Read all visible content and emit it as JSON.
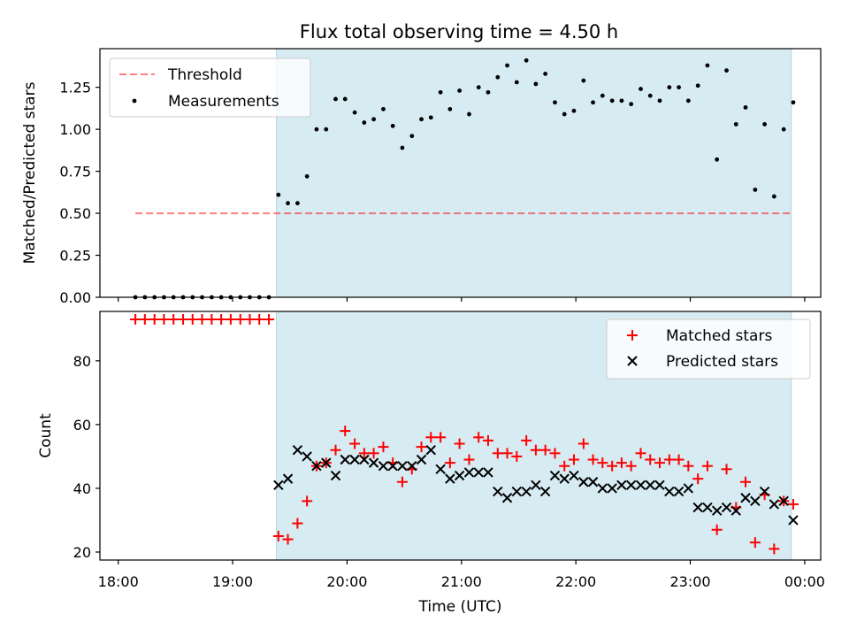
{
  "title": "Flux total observing time = 4.50 h",
  "colors": {
    "shade": "#add8e6",
    "threshold": "#ff0000",
    "measurement": "#000000",
    "matched": "#ff0000",
    "predicted": "#000000"
  },
  "chart_data": [
    {
      "type": "scatter",
      "ylabel": "Matched/Predicted stars",
      "ylim": [
        0,
        1.48
      ],
      "xlim_hours": [
        17.84,
        24.14
      ],
      "yticks": [
        0,
        0.25,
        0.5,
        0.75,
        1.0,
        1.25
      ],
      "ytick_labels": [
        "0.00",
        "0.25",
        "0.50",
        "0.75",
        "1.00",
        "1.25"
      ],
      "observing_window_hours": [
        19.383,
        23.883
      ],
      "legend": {
        "position": "upper-left",
        "entries": [
          {
            "name": "Threshold",
            "marker": "dashed-line"
          },
          {
            "name": "Measurements",
            "marker": "dot"
          }
        ]
      },
      "threshold": {
        "value": 0.5,
        "x_from": 18.15,
        "x_to": 23.883
      },
      "measurements": {
        "x": [
          18.15,
          18.233,
          18.317,
          18.4,
          18.483,
          18.567,
          18.65,
          18.733,
          18.817,
          18.9,
          18.983,
          19.067,
          19.15,
          19.233,
          19.317,
          19.4,
          19.483,
          19.567,
          19.65,
          19.733,
          19.817,
          19.9,
          19.983,
          20.067,
          20.15,
          20.233,
          20.317,
          20.4,
          20.483,
          20.567,
          20.65,
          20.733,
          20.817,
          20.9,
          20.983,
          21.067,
          21.15,
          21.233,
          21.317,
          21.4,
          21.483,
          21.567,
          21.65,
          21.733,
          21.817,
          21.9,
          21.983,
          22.067,
          22.15,
          22.233,
          22.317,
          22.4,
          22.483,
          22.567,
          22.65,
          22.733,
          22.817,
          22.9,
          22.983,
          23.067,
          23.15,
          23.233,
          23.317,
          23.4,
          23.483,
          23.567,
          23.65,
          23.733,
          23.817,
          23.9
        ],
        "y": [
          0,
          0,
          0,
          0,
          0,
          0,
          0,
          0,
          0,
          0,
          0,
          0,
          0,
          0,
          0,
          0.61,
          0.56,
          0.56,
          0.72,
          1.0,
          1.0,
          1.18,
          1.18,
          1.1,
          1.04,
          1.06,
          1.12,
          1.02,
          0.89,
          0.96,
          1.06,
          1.07,
          1.22,
          1.12,
          1.23,
          1.09,
          1.25,
          1.22,
          1.31,
          1.38,
          1.28,
          1.41,
          1.27,
          1.33,
          1.16,
          1.09,
          1.11,
          1.29,
          1.16,
          1.2,
          1.17,
          1.17,
          1.15,
          1.24,
          1.2,
          1.17,
          1.25,
          1.25,
          1.17,
          1.26,
          1.38,
          0.82,
          1.35,
          1.03,
          1.13,
          0.64,
          1.03,
          0.6,
          1.0,
          1.16
        ]
      }
    },
    {
      "type": "scatter",
      "ylabel": "Count",
      "xlabel": "Time (UTC)",
      "ylim": [
        17.5,
        95.5
      ],
      "xlim_hours": [
        17.84,
        24.14
      ],
      "yticks": [
        20,
        40,
        60,
        80
      ],
      "ytick_labels": [
        "20",
        "40",
        "60",
        "80"
      ],
      "xticks_hours": [
        18,
        19,
        20,
        21,
        22,
        23,
        24
      ],
      "xtick_labels": [
        "18:00",
        "19:00",
        "20:00",
        "21:00",
        "22:00",
        "23:00",
        "00:00"
      ],
      "observing_window_hours": [
        19.383,
        23.883
      ],
      "legend": {
        "position": "upper-right",
        "entries": [
          {
            "name": "Matched stars",
            "marker": "plus"
          },
          {
            "name": "Predicted stars",
            "marker": "x"
          }
        ]
      },
      "series": [
        {
          "name": "Matched stars",
          "x": [
            18.15,
            18.233,
            18.317,
            18.4,
            18.483,
            18.567,
            18.65,
            18.733,
            18.817,
            18.9,
            18.983,
            19.067,
            19.15,
            19.233,
            19.317,
            19.4,
            19.483,
            19.567,
            19.65,
            19.733,
            19.817,
            19.9,
            19.983,
            20.067,
            20.15,
            20.233,
            20.317,
            20.4,
            20.483,
            20.567,
            20.65,
            20.733,
            20.817,
            20.9,
            20.983,
            21.067,
            21.15,
            21.233,
            21.317,
            21.4,
            21.483,
            21.567,
            21.65,
            21.733,
            21.817,
            21.9,
            21.983,
            22.067,
            22.15,
            22.233,
            22.317,
            22.4,
            22.483,
            22.567,
            22.65,
            22.733,
            22.817,
            22.9,
            22.983,
            23.067,
            23.15,
            23.233,
            23.317,
            23.4,
            23.483,
            23.567,
            23.65,
            23.733,
            23.817,
            23.9
          ],
          "y": [
            93,
            93,
            93,
            93,
            93,
            93,
            93,
            93,
            93,
            93,
            93,
            93,
            93,
            93,
            93,
            25,
            24,
            29,
            36,
            47,
            48,
            52,
            58,
            54,
            51,
            51,
            53,
            48,
            42,
            46,
            53,
            56,
            56,
            48,
            54,
            49,
            56,
            55,
            51,
            51,
            50,
            55,
            52,
            52,
            51,
            47,
            49,
            54,
            49,
            48,
            47,
            48,
            47,
            51,
            49,
            48,
            49,
            49,
            47,
            43,
            47,
            27,
            46,
            34,
            42,
            23,
            38,
            21,
            36,
            35
          ]
        },
        {
          "name": "Predicted stars",
          "x": [
            19.4,
            19.483,
            19.567,
            19.65,
            19.733,
            19.817,
            19.9,
            19.983,
            20.067,
            20.15,
            20.233,
            20.317,
            20.4,
            20.483,
            20.567,
            20.65,
            20.733,
            20.817,
            20.9,
            20.983,
            21.067,
            21.15,
            21.233,
            21.317,
            21.4,
            21.483,
            21.567,
            21.65,
            21.733,
            21.817,
            21.9,
            21.983,
            22.067,
            22.15,
            22.233,
            22.317,
            22.4,
            22.483,
            22.567,
            22.65,
            22.733,
            22.817,
            22.9,
            22.983,
            23.067,
            23.15,
            23.233,
            23.317,
            23.4,
            23.483,
            23.567,
            23.65,
            23.733,
            23.817,
            23.9
          ],
          "y": [
            41,
            43,
            52,
            50,
            47,
            48,
            44,
            49,
            49,
            49,
            48,
            47,
            47,
            47,
            47,
            49,
            52,
            46,
            43,
            44,
            45,
            45,
            45,
            39,
            37,
            39,
            39,
            41,
            39,
            44,
            43,
            44,
            42,
            42,
            40,
            40,
            41,
            41,
            41,
            41,
            41,
            39,
            39,
            40,
            34,
            34,
            33,
            34,
            33,
            37,
            36,
            39,
            35,
            36,
            30
          ]
        }
      ]
    }
  ]
}
